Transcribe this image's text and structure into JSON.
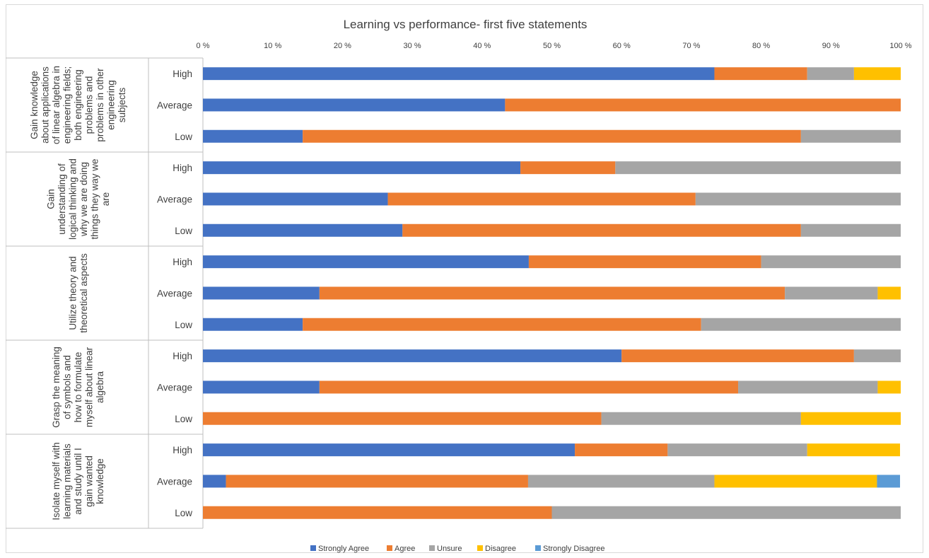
{
  "chart_data": {
    "type": "bar",
    "stacked": true,
    "orientation": "horizontal",
    "title": "Learning vs performance-   first five statements",
    "xlim": [
      0,
      100
    ],
    "x_ticks": [
      "0 %",
      "10 %",
      "20 %",
      "30 %",
      "40 %",
      "50 %",
      "60 %",
      "70 %",
      "80 %",
      "90 %",
      "100 %"
    ],
    "grid": false,
    "legend_position": "bottom",
    "series_names": [
      "Strongly Agree",
      "Agree",
      "Unsure",
      "Disagree",
      "Strongly Disagree"
    ],
    "colors": [
      "#4472c4",
      "#ed7d31",
      "#a5a5a5",
      "#ffc000",
      "#5b9bd5"
    ],
    "groups": [
      {
        "label_lines": [
          "Gain knowledge",
          "about applications",
          "of linear algebra in",
          "engineering fields;",
          "both engineering",
          "problems and",
          "problems in other",
          "engineering",
          "subjects"
        ],
        "rows": [
          {
            "category": "High",
            "values": [
              73.3,
              13.3,
              6.7,
              6.7,
              0
            ]
          },
          {
            "category": "Average",
            "values": [
              43.3,
              56.7,
              0,
              0,
              0
            ]
          },
          {
            "category": "Low",
            "values": [
              14.3,
              71.4,
              14.3,
              0,
              0
            ]
          }
        ]
      },
      {
        "label_lines": [
          "Gain",
          "understanding of",
          "logical thinking and",
          "why we are doing",
          "things they way we",
          "are"
        ],
        "rows": [
          {
            "category": "High",
            "values": [
              45.5,
              13.6,
              40.9,
              0,
              0
            ]
          },
          {
            "category": "Average",
            "values": [
              26.5,
              44.1,
              29.4,
              0,
              0
            ]
          },
          {
            "category": "Low",
            "values": [
              28.6,
              57.1,
              14.3,
              0,
              0
            ]
          }
        ]
      },
      {
        "label_lines": [
          "Utilize theory and",
          "theoretical aspects"
        ],
        "rows": [
          {
            "category": "High",
            "values": [
              46.7,
              33.3,
              20.0,
              0,
              0
            ]
          },
          {
            "category": "Average",
            "values": [
              16.7,
              66.7,
              13.3,
              3.3,
              0
            ]
          },
          {
            "category": "Low",
            "values": [
              14.3,
              57.1,
              28.6,
              0,
              0
            ]
          }
        ]
      },
      {
        "label_lines": [
          "Grasp the meaning",
          "of symbols and",
          "how to formulate",
          "myself about linear",
          "algebra"
        ],
        "rows": [
          {
            "category": "High",
            "values": [
              60.0,
              33.3,
              6.7,
              0,
              0
            ]
          },
          {
            "category": "Average",
            "values": [
              16.7,
              60.0,
              20.0,
              3.3,
              0
            ]
          },
          {
            "category": "Low",
            "values": [
              0,
              57.1,
              28.6,
              14.3,
              0
            ]
          }
        ]
      },
      {
        "label_lines": [
          "Isolate myself with",
          "learning materials",
          "and study until I",
          "gain wanted",
          "knowledge"
        ],
        "rows": [
          {
            "category": "High",
            "values": [
              53.3,
              13.3,
              20.0,
              13.3,
              0
            ]
          },
          {
            "category": "Average",
            "values": [
              3.3,
              43.3,
              26.7,
              23.3,
              3.3
            ]
          },
          {
            "category": "Low",
            "values": [
              0,
              50.0,
              50.0,
              0,
              0
            ]
          }
        ]
      }
    ]
  }
}
